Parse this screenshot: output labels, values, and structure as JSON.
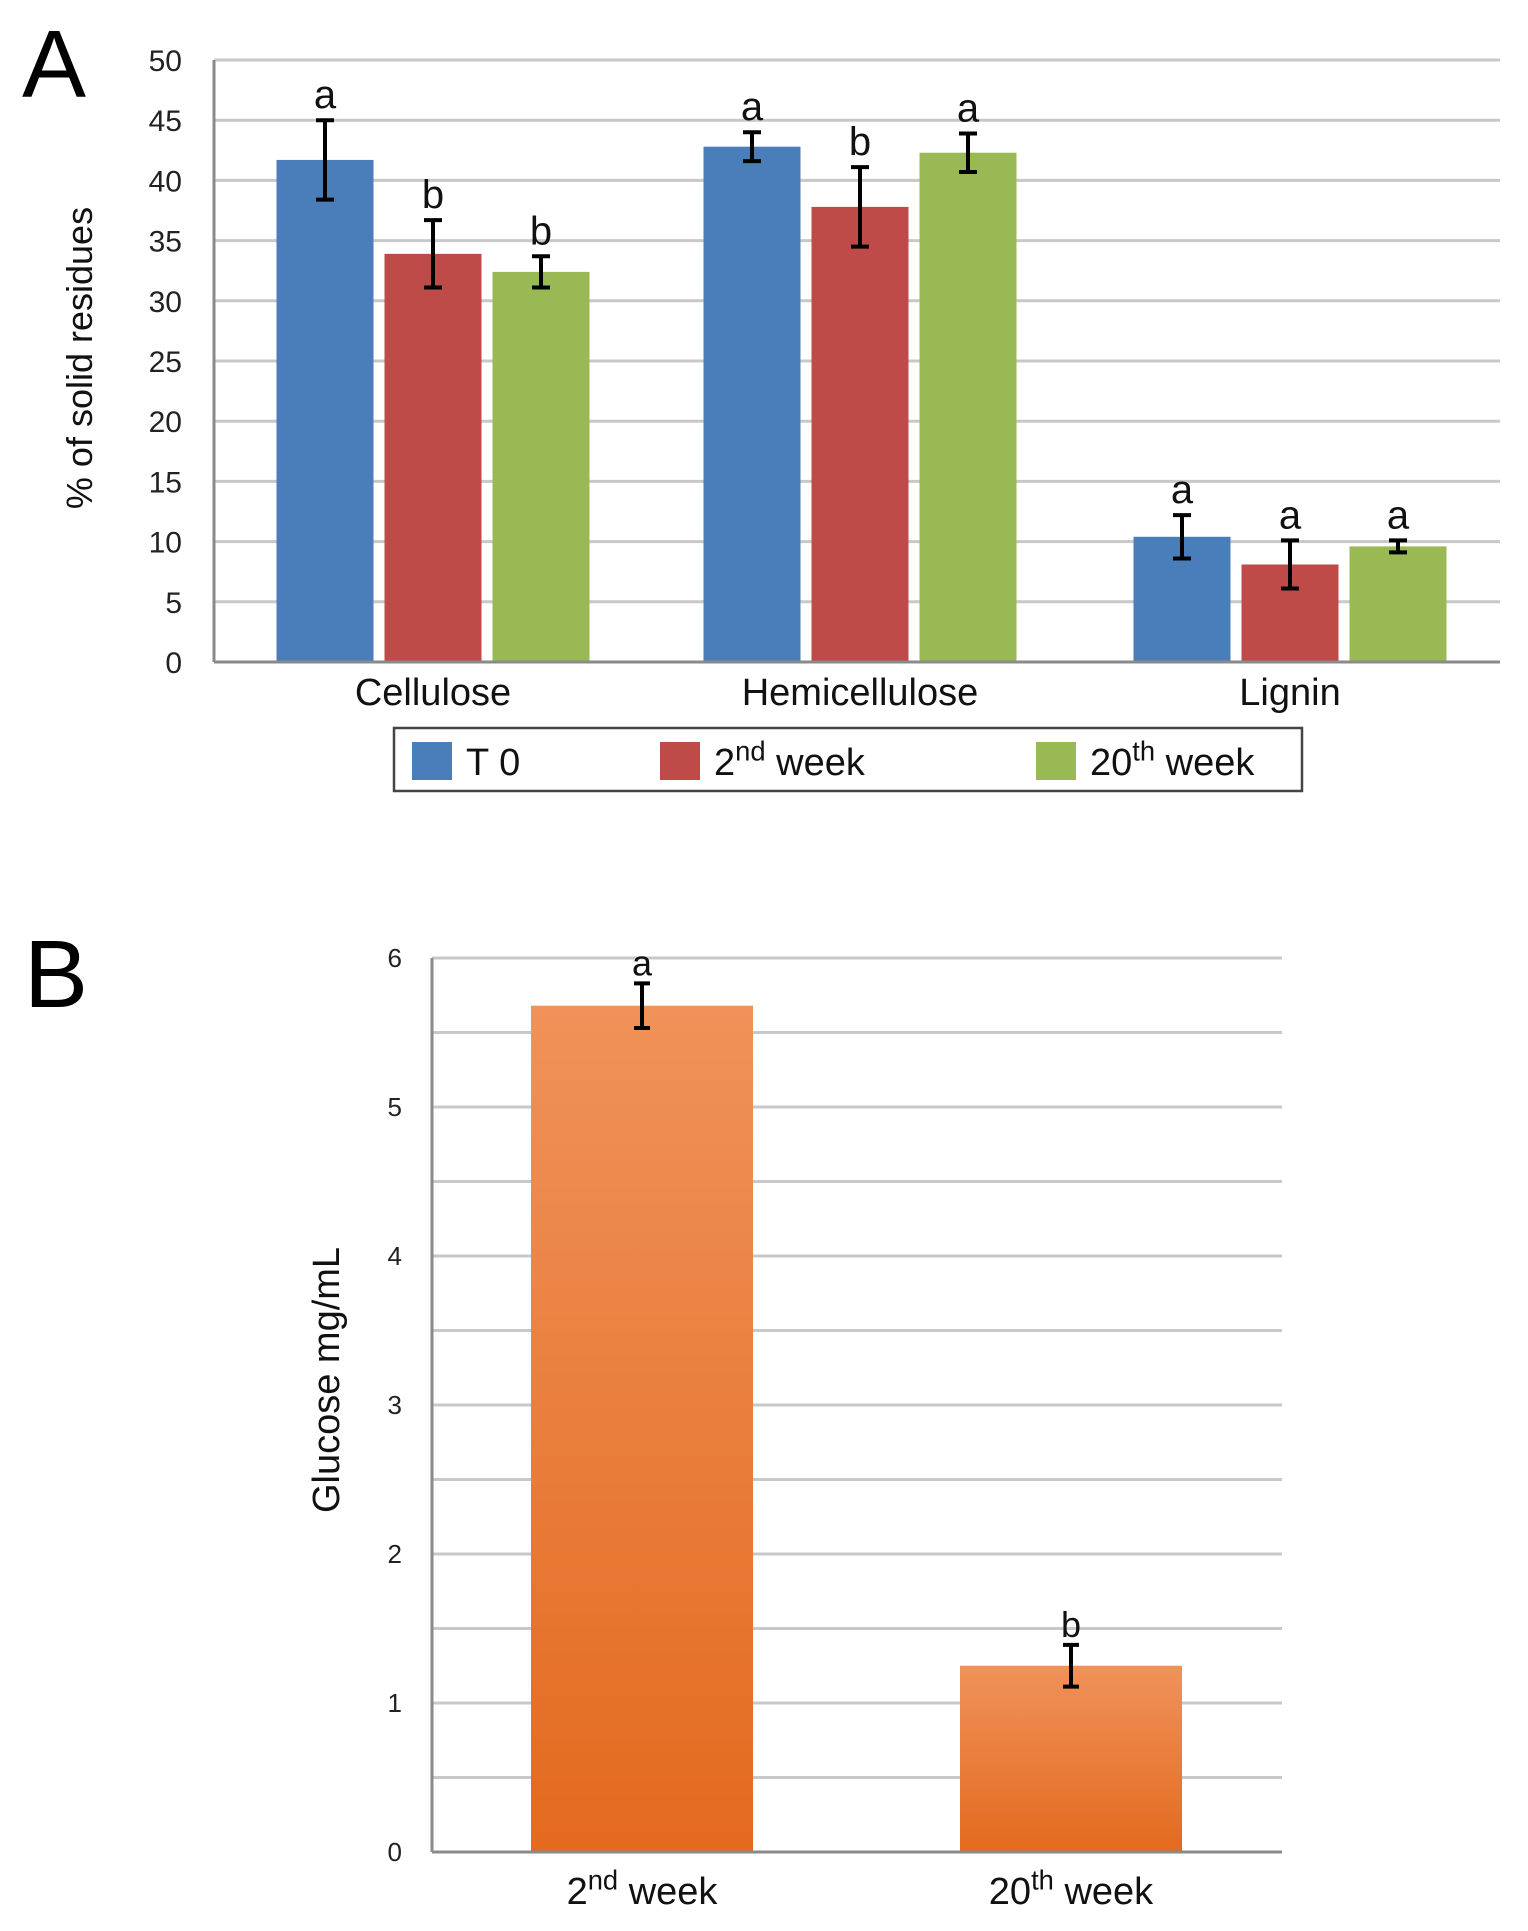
{
  "panel_labels": {
    "a": "A",
    "b": "B"
  },
  "chart_data": [
    {
      "panel": "A",
      "type": "bar",
      "ylabel": "% of solid residues",
      "ylim": [
        0,
        50
      ],
      "yticks": [
        0,
        5,
        10,
        15,
        20,
        25,
        30,
        35,
        40,
        45,
        50
      ],
      "grid": true,
      "categories": [
        "Cellulose",
        "Hemicellulose",
        "Lignin"
      ],
      "legend_placement": "bottom",
      "series": [
        {
          "name": "T 0",
          "legend": {
            "base": "T 0",
            "sup": "",
            "tail": ""
          },
          "color": "#4a7ebb",
          "values": [
            41.7,
            42.8,
            10.4
          ],
          "errors": [
            3.3,
            1.2,
            1.8
          ],
          "letters": [
            "a",
            "a",
            "a"
          ]
        },
        {
          "name": "2nd week",
          "legend": {
            "base": "2",
            "sup": "nd",
            "tail": " week"
          },
          "color": "#be4b48",
          "values": [
            33.9,
            37.8,
            8.1
          ],
          "errors": [
            2.8,
            3.3,
            2.0
          ],
          "letters": [
            "b",
            "b",
            "a"
          ]
        },
        {
          "name": "20th week",
          "legend": {
            "base": "20",
            "sup": "th",
            "tail": " week"
          },
          "color": "#98b954",
          "values": [
            32.4,
            42.3,
            9.6
          ],
          "errors": [
            1.3,
            1.6,
            0.5
          ],
          "letters": [
            "b",
            "a",
            "a"
          ]
        }
      ]
    },
    {
      "panel": "B",
      "type": "bar",
      "ylabel": "Glucose mg/mL",
      "ylim": [
        0,
        6
      ],
      "yticks": [
        0,
        1,
        2,
        3,
        4,
        5,
        6
      ],
      "grid": true,
      "color_top": "#f0925a",
      "color_bottom": "#e36a1e",
      "categories": [
        {
          "base": "2",
          "sup": "nd",
          "tail": " week"
        },
        {
          "base": "20",
          "sup": "th",
          "tail": " week"
        }
      ],
      "values": [
        5.68,
        1.25
      ],
      "errors": [
        0.15,
        0.14
      ],
      "letters": [
        "a",
        "b"
      ]
    }
  ]
}
